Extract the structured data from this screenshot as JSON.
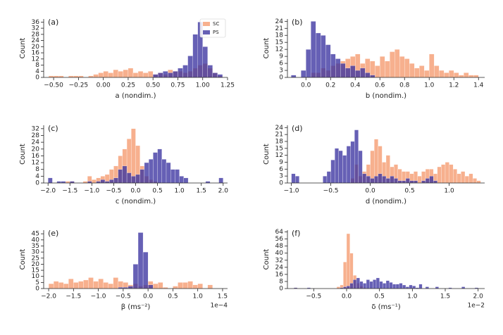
{
  "chart_data": [
    {
      "type": "histogram",
      "title": "(a)",
      "xlabel": "a (nondim.)",
      "ylabel": "Count",
      "legend": "upper right",
      "bins": [
        -0.55,
        -0.5,
        -0.45,
        -0.4,
        -0.35,
        -0.3,
        -0.25,
        -0.2,
        -0.15,
        -0.1,
        -0.05,
        0,
        0.05,
        0.1,
        0.15,
        0.2,
        0.25,
        0.3,
        0.35,
        0.4,
        0.45,
        0.5,
        0.55,
        0.6,
        0.65,
        0.7,
        0.75,
        0.8,
        0.85,
        0.9,
        0.95,
        1,
        1.05,
        1.1,
        1.15,
        1.2
      ],
      "series": [
        {
          "name": "SC",
          "color": "#f59a6e",
          "values": [
            1,
            1,
            1,
            0,
            1,
            1,
            1,
            0,
            1,
            2,
            3,
            4,
            3,
            5,
            4,
            5,
            6,
            3,
            4,
            3,
            4,
            2,
            3,
            2,
            5,
            4,
            4,
            3,
            4,
            6,
            8,
            9,
            6,
            3,
            1
          ]
        },
        {
          "name": "PS",
          "color": "#3b33a0",
          "values": [
            0,
            0,
            0,
            0,
            0,
            0,
            0,
            0,
            0,
            0,
            0,
            0,
            0,
            0,
            0,
            0,
            0,
            0,
            0,
            0,
            0,
            2,
            3,
            4,
            3,
            4,
            6,
            8,
            14,
            28,
            36,
            20,
            8,
            3,
            2
          ]
        }
      ],
      "xlim": [
        -0.6,
        1.25
      ],
      "xticks": [
        {
          "value": -0.5,
          "label": "−0.50"
        },
        {
          "value": -0.25,
          "label": "−0.25"
        },
        {
          "value": 0,
          "label": "0.00"
        },
        {
          "value": 0.25,
          "label": "0.25"
        },
        {
          "value": 0.5,
          "label": "0.50"
        },
        {
          "value": 0.75,
          "label": "0.75"
        },
        {
          "value": 1,
          "label": "1.00"
        },
        {
          "value": 1.25,
          "label": "1.25"
        }
      ],
      "ylim": [
        0,
        38
      ],
      "yticks": [
        0,
        4,
        8,
        12,
        16,
        20,
        24,
        28,
        32,
        36
      ]
    },
    {
      "type": "histogram",
      "title": "(b)",
      "xlabel": "b (nondim.)",
      "ylabel": "Count",
      "bins": [
        -0.12,
        -0.08,
        -0.04,
        0,
        0.04,
        0.08,
        0.12,
        0.16,
        0.2,
        0.24,
        0.28,
        0.32,
        0.36,
        0.4,
        0.44,
        0.48,
        0.52,
        0.56,
        0.6,
        0.64,
        0.68,
        0.72,
        0.76,
        0.8,
        0.84,
        0.88,
        0.92,
        0.96,
        1,
        1.04,
        1.08,
        1.12,
        1.16,
        1.2,
        1.24,
        1.28,
        1.32,
        1.36,
        1.4
      ],
      "series": [
        {
          "name": "SC",
          "color": "#f59a6e",
          "values": [
            0,
            0,
            0,
            0,
            2,
            2,
            4,
            3,
            5,
            6,
            7,
            8,
            9,
            10,
            6,
            8,
            7,
            5,
            9,
            7,
            11,
            12,
            9,
            8,
            6,
            4,
            5,
            3,
            10,
            5,
            3,
            2,
            3,
            2,
            1,
            2,
            1,
            1
          ]
        },
        {
          "name": "PS",
          "color": "#3b33a0",
          "values": [
            1,
            0,
            3,
            12,
            24,
            19,
            18,
            14,
            10,
            8,
            6,
            4,
            5,
            3,
            4,
            2,
            1,
            0,
            0,
            0,
            0,
            0,
            0,
            0,
            0,
            0,
            0,
            0,
            0,
            0,
            0,
            0,
            0,
            0,
            0,
            0,
            0,
            0
          ]
        }
      ],
      "xlim": [
        -0.15,
        1.45
      ],
      "xticks": [
        {
          "value": 0,
          "label": "0.0"
        },
        {
          "value": 0.2,
          "label": "0.2"
        },
        {
          "value": 0.4,
          "label": "0.4"
        },
        {
          "value": 0.6,
          "label": "0.6"
        },
        {
          "value": 0.8,
          "label": "0.8"
        },
        {
          "value": 1,
          "label": "1.0"
        },
        {
          "value": 1.2,
          "label": "1.2"
        },
        {
          "value": 1.4,
          "label": "1.4"
        }
      ],
      "ylim": [
        0,
        25
      ],
      "yticks": [
        0,
        3,
        6,
        9,
        12,
        15,
        18,
        21,
        24
      ]
    },
    {
      "type": "histogram",
      "title": "(c)",
      "xlabel": "c (nondim.)",
      "ylabel": "Count",
      "bins": [
        -2,
        -1.9,
        -1.8,
        -1.7,
        -1.6,
        -1.5,
        -1.4,
        -1.3,
        -1.2,
        -1.1,
        -1,
        -0.9,
        -0.8,
        -0.7,
        -0.6,
        -0.5,
        -0.4,
        -0.3,
        -0.2,
        -0.1,
        0,
        0.1,
        0.2,
        0.3,
        0.4,
        0.5,
        0.6,
        0.7,
        0.8,
        0.9,
        1,
        1.1,
        1.2,
        1.3,
        1.4,
        1.5,
        1.6,
        1.7,
        1.8,
        1.9,
        2
      ],
      "series": [
        {
          "name": "SC",
          "color": "#f59a6e",
          "values": [
            0,
            0,
            0,
            0,
            1,
            1,
            0,
            0,
            1,
            4,
            2,
            3,
            4,
            5,
            8,
            10,
            16,
            20,
            26,
            32,
            22,
            10,
            4,
            2,
            1,
            0,
            0,
            0,
            0,
            0,
            0,
            0,
            0,
            0,
            0,
            0,
            0,
            0,
            0,
            0
          ]
        },
        {
          "name": "PS",
          "color": "#3b33a0",
          "values": [
            3,
            0,
            1,
            1,
            0,
            1,
            0,
            0,
            0,
            1,
            0,
            1,
            2,
            1,
            2,
            3,
            8,
            10,
            6,
            4,
            5,
            8,
            12,
            14,
            18,
            20,
            14,
            12,
            8,
            8,
            4,
            3,
            0,
            0,
            0,
            0,
            1,
            0,
            0,
            3
          ]
        }
      ],
      "xlim": [
        -2.1,
        2.1
      ],
      "xticks": [
        {
          "value": -2,
          "label": "−2.0"
        },
        {
          "value": -1.5,
          "label": "−1.5"
        },
        {
          "value": -1,
          "label": "−1.0"
        },
        {
          "value": -0.5,
          "label": "−0.5"
        },
        {
          "value": 0,
          "label": "0.0"
        },
        {
          "value": 0.5,
          "label": "0.5"
        },
        {
          "value": 1,
          "label": "1.0"
        },
        {
          "value": 1.5,
          "label": "1.5"
        },
        {
          "value": 2,
          "label": "2.0"
        }
      ],
      "ylim": [
        0,
        34
      ],
      "yticks": [
        0,
        4,
        8,
        12,
        16,
        20,
        24,
        28,
        32
      ]
    },
    {
      "type": "histogram",
      "title": "(d)",
      "xlabel": "d (nondim.)",
      "ylabel": "Count",
      "bins": [
        -1,
        -0.95,
        -0.9,
        -0.85,
        -0.8,
        -0.75,
        -0.7,
        -0.65,
        -0.6,
        -0.55,
        -0.5,
        -0.45,
        -0.4,
        -0.35,
        -0.3,
        -0.25,
        -0.2,
        -0.15,
        -0.1,
        -0.05,
        0,
        0.05,
        0.1,
        0.15,
        0.2,
        0.25,
        0.3,
        0.35,
        0.4,
        0.45,
        0.5,
        0.55,
        0.6,
        0.65,
        0.7,
        0.75,
        0.8,
        0.85,
        0.9,
        0.95,
        1,
        1.05,
        1.1,
        1.15,
        1.2,
        1.25,
        1.3,
        1.35,
        1.4
      ],
      "series": [
        {
          "name": "SC",
          "color": "#f59a6e",
          "values": [
            0,
            0,
            0,
            0,
            0,
            0,
            0,
            0,
            0,
            0,
            0,
            0,
            0,
            0,
            0,
            2,
            8,
            3,
            5,
            8,
            14,
            19,
            16,
            9,
            12,
            7,
            8,
            6,
            5,
            5,
            4,
            5,
            3,
            5,
            6,
            6,
            4,
            7,
            8,
            9,
            8,
            6,
            4,
            5,
            3,
            4,
            2,
            1
          ]
        },
        {
          "name": "PS",
          "color": "#3b33a0",
          "values": [
            4,
            3,
            0,
            0,
            0,
            0,
            0,
            0,
            3,
            5,
            10,
            15,
            14,
            12,
            16,
            18,
            23,
            14,
            4,
            3,
            2,
            3,
            4,
            3,
            2,
            3,
            2,
            1,
            1,
            2,
            1,
            1,
            0,
            1,
            2,
            3,
            1,
            0,
            0,
            0,
            0,
            0,
            0,
            0,
            0,
            0,
            0,
            0
          ]
        }
      ],
      "xlim": [
        -1.05,
        1.45
      ],
      "xticks": [
        {
          "value": -1,
          "label": "−1.0"
        },
        {
          "value": -0.5,
          "label": "−0.5"
        },
        {
          "value": 0,
          "label": "0.0"
        },
        {
          "value": 0.5,
          "label": "0.5"
        },
        {
          "value": 1,
          "label": "1.0"
        }
      ],
      "ylim": [
        0,
        25
      ],
      "yticks": [
        0,
        3,
        6,
        9,
        12,
        15,
        18,
        21,
        24
      ]
    },
    {
      "type": "histogram",
      "title": "(e)",
      "xlabel": "β (ms⁻²)",
      "ylabel": "Count",
      "x_offset_label": "1e−4",
      "bins": [
        -2,
        -1.9,
        -1.8,
        -1.7,
        -1.6,
        -1.5,
        -1.4,
        -1.3,
        -1.2,
        -1.1,
        -1,
        -0.9,
        -0.8,
        -0.7,
        -0.6,
        -0.5,
        -0.4,
        -0.3,
        -0.2,
        -0.1,
        0,
        0.1,
        0.2,
        0.3,
        0.4,
        0.5,
        0.6,
        0.7,
        0.8,
        0.9,
        1,
        1.1,
        1.2,
        1.3
      ],
      "series": [
        {
          "name": "SC",
          "color": "#f59a6e",
          "values": [
            4,
            6,
            5,
            4,
            8,
            5,
            6,
            7,
            9,
            6,
            8,
            5,
            4,
            9,
            6,
            5,
            3,
            4,
            2,
            3,
            6,
            4,
            5,
            1,
            0,
            2,
            5,
            5,
            6,
            3,
            4,
            0,
            3
          ]
        },
        {
          "name": "PS",
          "color": "#3b33a0",
          "values": [
            0,
            0,
            0,
            0,
            0,
            0,
            0,
            0,
            0,
            0,
            0,
            0,
            0,
            0,
            1,
            1,
            2,
            20,
            46,
            30,
            3,
            0,
            0,
            0,
            0,
            0,
            0,
            0,
            0,
            0,
            0,
            0,
            0
          ]
        }
      ],
      "xlim": [
        -2.1,
        1.6
      ],
      "xticks": [
        {
          "value": -2,
          "label": "−2.0"
        },
        {
          "value": -1.5,
          "label": "−1.5"
        },
        {
          "value": -1,
          "label": "−1.0"
        },
        {
          "value": -0.5,
          "label": "−0.5"
        },
        {
          "value": 0,
          "label": "0.0"
        },
        {
          "value": 0.5,
          "label": "0.5"
        },
        {
          "value": 1,
          "label": "1.0"
        },
        {
          "value": 1.5,
          "label": "1.5"
        }
      ],
      "ylim": [
        0,
        48
      ],
      "yticks": [
        0,
        5,
        10,
        15,
        20,
        25,
        30,
        35,
        40,
        45
      ]
    },
    {
      "type": "histogram",
      "title": "(f)",
      "xlabel": "δ (ms⁻¹)",
      "ylabel": "Count",
      "x_offset_label": "1e−2",
      "bins": [
        -0.8,
        -0.75,
        -0.7,
        -0.65,
        -0.6,
        -0.55,
        -0.5,
        -0.45,
        -0.4,
        -0.35,
        -0.3,
        -0.25,
        -0.2,
        -0.15,
        -0.1,
        -0.05,
        0,
        0.05,
        0.1,
        0.15,
        0.2,
        0.25,
        0.3,
        0.35,
        0.4,
        0.45,
        0.5,
        0.55,
        0.6,
        0.65,
        0.7,
        0.75,
        0.8,
        0.85,
        0.9,
        0.95,
        1,
        1.05,
        1.1,
        1.15,
        1.2,
        1.25,
        1.3,
        1.35,
        1.4,
        1.45,
        1.5,
        1.55,
        1.6,
        1.65,
        1.7,
        1.75,
        1.8,
        1.85,
        1.9,
        1.95,
        2
      ],
      "series": [
        {
          "name": "SC",
          "color": "#f59a6e",
          "values": [
            1,
            0,
            0,
            0,
            0,
            0,
            0,
            0,
            0,
            0,
            0,
            0,
            0,
            2,
            4,
            30,
            62,
            40,
            15,
            6,
            3,
            1,
            0,
            0,
            0,
            0,
            0,
            0,
            0,
            0,
            0,
            0,
            0,
            0,
            0,
            0,
            0,
            0,
            0,
            0,
            0,
            0,
            0,
            0,
            0,
            0,
            0,
            0,
            0,
            0,
            0,
            0,
            0,
            0,
            0,
            0
          ]
        },
        {
          "name": "PS",
          "color": "#3b33a0",
          "values": [
            1,
            0,
            0,
            0,
            1,
            0,
            0,
            0,
            0,
            0,
            0,
            0,
            0,
            0,
            1,
            2,
            3,
            6,
            10,
            12,
            8,
            6,
            10,
            8,
            10,
            12,
            8,
            6,
            9,
            7,
            5,
            5,
            6,
            4,
            2,
            4,
            3,
            1,
            5,
            0,
            2,
            0,
            0,
            2,
            0,
            0,
            0,
            1,
            0,
            0,
            0,
            2,
            0,
            0,
            0,
            1
          ]
        }
      ],
      "xlim": [
        -0.9,
        2.1
      ],
      "xticks": [
        {
          "value": -0.5,
          "label": "−0.5"
        },
        {
          "value": 0,
          "label": "0.0"
        },
        {
          "value": 0.5,
          "label": "0.5"
        },
        {
          "value": 1,
          "label": "1.0"
        },
        {
          "value": 1.5,
          "label": "1.5"
        },
        {
          "value": 2,
          "label": "2.0"
        }
      ],
      "ylim": [
        0,
        66
      ],
      "yticks": [
        0,
        8,
        16,
        24,
        32,
        40,
        48,
        56,
        64
      ]
    }
  ]
}
